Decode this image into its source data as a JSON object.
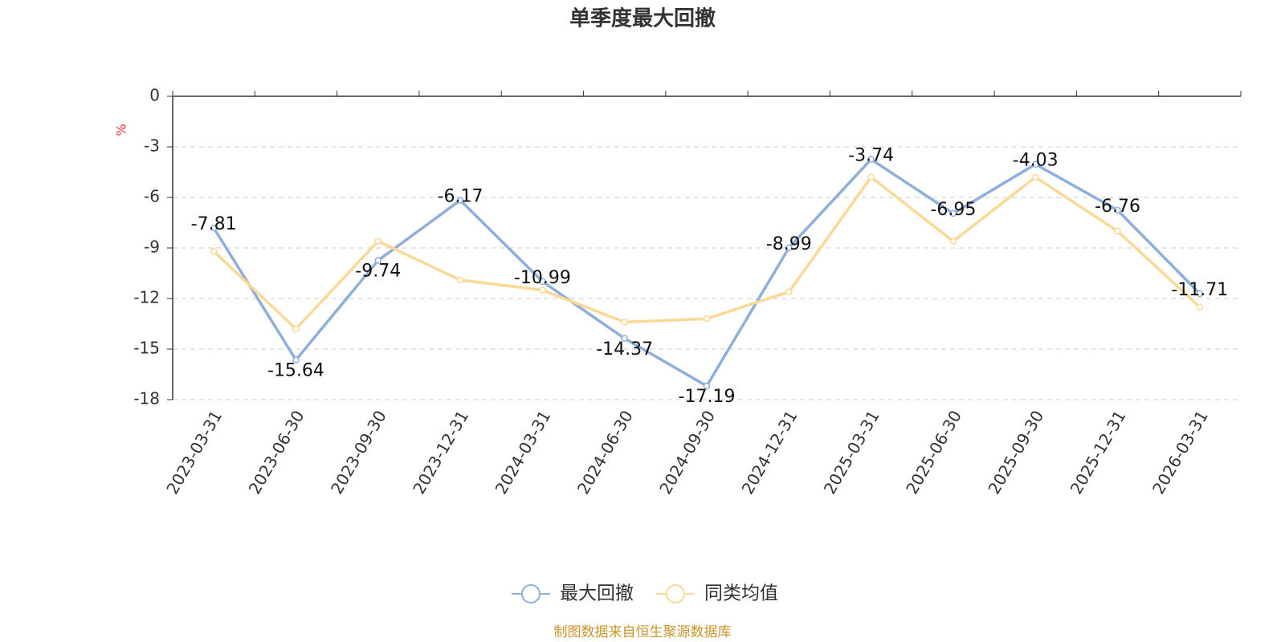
{
  "chart_data": {
    "type": "line",
    "title": "单季度最大回撤",
    "y_label": "%",
    "source": "制图数据来自恒生聚源数据库",
    "categories": [
      "2023-03-31",
      "2023-06-30",
      "2023-09-30",
      "2023-12-31",
      "2024-03-31",
      "2024-06-30",
      "2024-09-30",
      "2024-12-31",
      "2025-03-31",
      "2025-06-30",
      "2025-09-30",
      "2025-12-31",
      "2026-03-31"
    ],
    "series": [
      {
        "name": "最大回撤",
        "color": "#8eaedb",
        "values": [
          -7.81,
          -15.64,
          -9.74,
          -6.17,
          -10.99,
          -14.37,
          -17.19,
          -8.99,
          -3.74,
          -6.95,
          -4.03,
          -6.76,
          -11.71
        ],
        "data_labels": true
      },
      {
        "name": "同类均值",
        "color": "#fad996",
        "values": [
          -9.2,
          -13.8,
          -8.6,
          -10.9,
          -11.5,
          -13.4,
          -13.2,
          -11.6,
          -4.8,
          -8.6,
          -4.8,
          -8.0,
          -12.5
        ],
        "data_labels": false
      }
    ],
    "ylim": [
      -18,
      0
    ],
    "yticks": [
      0,
      -3,
      -6,
      -9,
      -12,
      -15,
      -18
    ],
    "grid": true,
    "legend": "bottom"
  }
}
